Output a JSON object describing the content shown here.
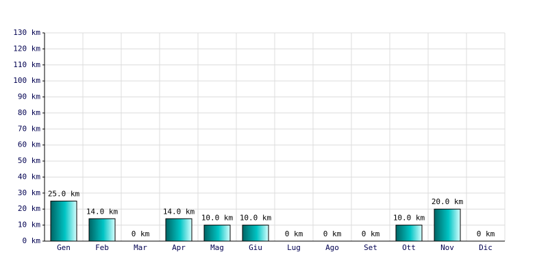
{
  "chart_data": {
    "type": "bar",
    "categories": [
      "Gen",
      "Feb",
      "Mar",
      "Apr",
      "Mag",
      "Giu",
      "Lug",
      "Ago",
      "Set",
      "Ott",
      "Nov",
      "Dic"
    ],
    "values": [
      25,
      14,
      0,
      14,
      10,
      10,
      0,
      0,
      0,
      10,
      20,
      0
    ],
    "value_labels": [
      "25.0 km",
      "14.0 km",
      "0 km",
      "14.0 km",
      "10.0 km",
      "10.0 km",
      "0 km",
      "0 km",
      "0 km",
      "10.0 km",
      "20.0 km",
      "0 km"
    ],
    "color": "#00c4c4",
    "ylim": [
      0,
      130
    ],
    "yticks": [
      {
        "value": 0,
        "label": "0 km"
      },
      {
        "value": 10,
        "label": "10 km"
      },
      {
        "value": 20,
        "label": "20 km"
      },
      {
        "value": 30,
        "label": "30 km"
      },
      {
        "value": 40,
        "label": "40 km"
      },
      {
        "value": 50,
        "label": "50 km"
      },
      {
        "value": 60,
        "label": "60 km"
      },
      {
        "value": 70,
        "label": "70 km"
      },
      {
        "value": 80,
        "label": "80 km"
      },
      {
        "value": 90,
        "label": "90 km"
      },
      {
        "value": 100,
        "label": "100 km"
      },
      {
        "value": 110,
        "label": "110 km"
      },
      {
        "value": 120,
        "label": "120 km"
      },
      {
        "value": 130,
        "label": "130 km"
      }
    ],
    "grid": true
  }
}
